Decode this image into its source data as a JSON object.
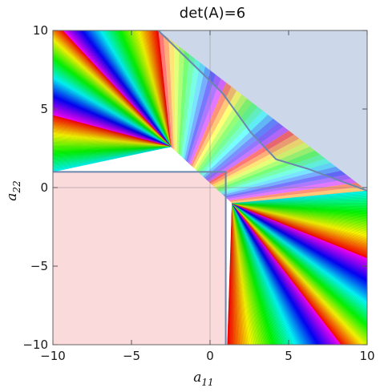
{
  "chart_data": {
    "type": "contour",
    "title": "det(A)=6",
    "xlabel": "a",
    "xlabel_sub": "11",
    "ylabel": "a",
    "ylabel_sub": "22",
    "xlim": [
      -10,
      10
    ],
    "ylim": [
      -10,
      10
    ],
    "xticks": [
      -10,
      -5,
      0,
      5,
      10
    ],
    "yticks": [
      -10,
      -5,
      0,
      5,
      10
    ],
    "xtick_labels": [
      "−10",
      "−5",
      "0",
      "5",
      "10"
    ],
    "ytick_labels": [
      "−10",
      "−5",
      "0",
      "5",
      "10"
    ],
    "regions": [
      {
        "id": "lower-left-region",
        "color": "#fadadb",
        "polygon": [
          [
            -10,
            1
          ],
          [
            1,
            1
          ],
          [
            1,
            -10
          ],
          [
            -10,
            -10
          ]
        ]
      },
      {
        "id": "upper-right-region",
        "color": "#cdd7ea",
        "polygon": [
          [
            -3.3,
            10
          ],
          [
            10,
            10
          ],
          [
            10,
            -0.2
          ],
          [
            6.2,
            1.2
          ],
          [
            4.2,
            1.8
          ],
          [
            2.6,
            3.5
          ],
          [
            0.8,
            6
          ],
          [
            0.3,
            6.5
          ]
        ]
      }
    ],
    "rainbow_fans": [
      {
        "id": "fan-upper-left",
        "apex": [
          -2.5,
          2.6
        ],
        "arc": [
          [
            -3.3,
            10
          ],
          [
            -10,
            10
          ],
          [
            -10,
            1
          ]
        ]
      },
      {
        "id": "fan-lower-right",
        "apex": [
          1.4,
          -1.0
        ],
        "arc": [
          [
            1.1,
            -10
          ],
          [
            10,
            -10
          ],
          [
            10,
            -0.2
          ]
        ]
      }
    ],
    "boundary_color": "#6b87b0",
    "grid_lines": {
      "x": 0,
      "y": 0
    }
  }
}
